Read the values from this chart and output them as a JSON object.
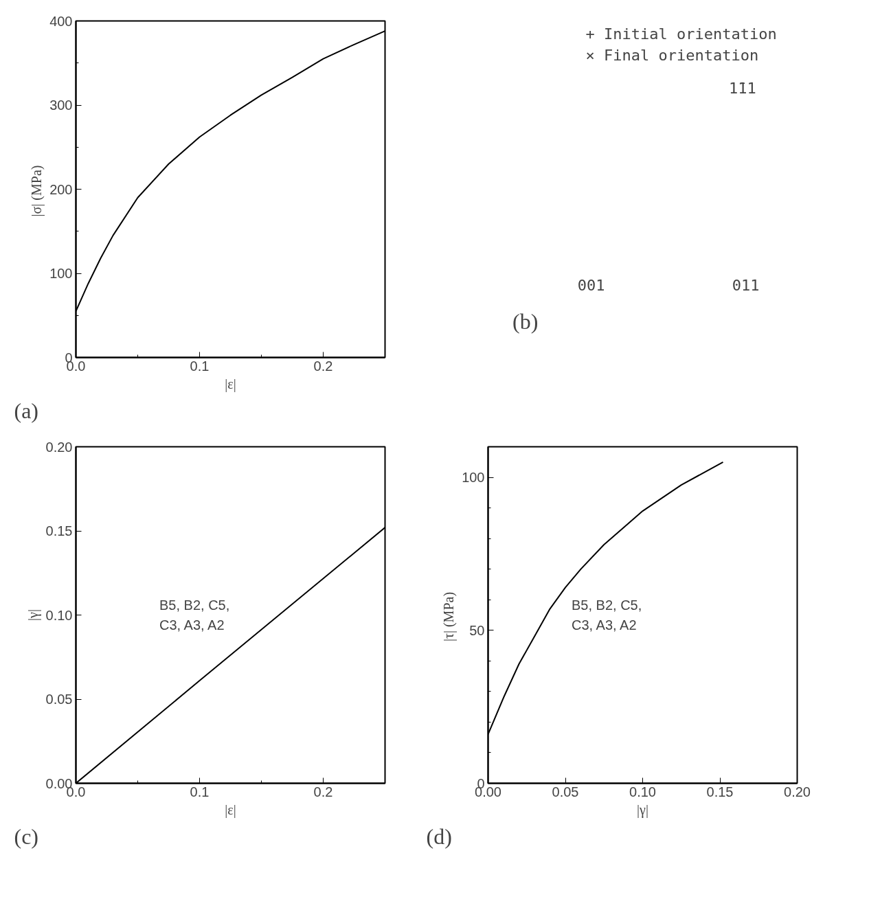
{
  "chart_data": [
    {
      "type": "line",
      "xlabel": "|ε|",
      "ylabel": "|σ|  (MPa)",
      "annotations": [
        "(a)"
      ],
      "x": [
        0,
        0.01,
        0.02,
        0.03,
        0.05,
        0.075,
        0.1,
        0.125,
        0.15,
        0.175,
        0.2,
        0.225,
        0.25
      ],
      "series": [
        {
          "color": "#000000",
          "values": [
            55,
            88,
            118,
            145,
            190,
            230,
            262,
            288,
            312,
            333,
            355,
            372,
            388
          ]
        }
      ],
      "xlim": [
        0,
        0.25
      ],
      "ylim": [
        0,
        400
      ],
      "xticks": [
        {
          "value": 0,
          "label": "0.0"
        },
        {
          "value": 0.05,
          "label": null
        },
        {
          "value": 0.1,
          "label": "0.1"
        },
        {
          "value": 0.15,
          "label": null
        },
        {
          "value": 0.2,
          "label": "0.2"
        }
      ],
      "yticks": [
        0,
        {
          "value": 50,
          "label": null
        },
        100,
        {
          "value": 150,
          "label": null
        },
        200,
        {
          "value": 250,
          "label": null
        },
        300,
        {
          "value": 350,
          "label": null
        },
        400
      ],
      "grid": false,
      "marker": "none",
      "line_style": "solid"
    },
    {
      "type": "other",
      "annotations": [
        "+ Initial orientation",
        "× Final orientation",
        "1̄11",
        "001",
        "011",
        "(b)"
      ]
    },
    {
      "type": "line",
      "xlabel": "|ε|",
      "ylabel": "|γ|",
      "annotations": [
        "(c)",
        "B5, B2, C5,\nC3, A3, A2"
      ],
      "x": [
        0,
        0.1,
        0.25
      ],
      "series": [
        {
          "color": "#000000",
          "values": [
            0,
            0.061,
            0.152
          ]
        }
      ],
      "xlim": [
        0,
        0.25
      ],
      "ylim": [
        0,
        0.2
      ],
      "xticks": [
        {
          "value": 0,
          "label": "0.0"
        },
        {
          "value": 0.05,
          "label": null
        },
        {
          "value": 0.1,
          "label": "0.1"
        },
        {
          "value": 0.15,
          "label": null
        },
        {
          "value": 0.2,
          "label": "0.2"
        }
      ],
      "yticks": [
        {
          "value": 0,
          "label": "0.00"
        },
        0.05,
        {
          "value": 0.1,
          "label": "0.10"
        },
        0.15,
        {
          "value": 0.2,
          "label": "0.20"
        }
      ],
      "grid": false,
      "marker": "none",
      "line_style": "solid"
    },
    {
      "type": "line",
      "xlabel": "|γ|",
      "ylabel": "|τ|  (MPa)",
      "annotations": [
        "(d)",
        "B5, B2, C5,\nC3, A3, A2"
      ],
      "x": [
        0,
        0.01,
        0.02,
        0.03,
        0.04,
        0.05,
        0.06,
        0.075,
        0.1,
        0.125,
        0.152
      ],
      "series": [
        {
          "color": "#000000",
          "values": [
            16,
            28,
            39,
            48,
            57,
            64,
            70,
            78,
            89,
            97.5,
            105
          ]
        }
      ],
      "xlim": [
        0,
        0.2
      ],
      "ylim": [
        0,
        110
      ],
      "xticks": [
        {
          "value": 0,
          "label": "0.00"
        },
        0.05,
        {
          "value": 0.1,
          "label": "0.10"
        },
        0.15,
        {
          "value": 0.2,
          "label": "0.20"
        }
      ],
      "yticks": [
        0,
        {
          "value": 10,
          "label": null
        },
        {
          "value": 20,
          "label": null
        },
        {
          "value": 30,
          "label": null
        },
        {
          "value": 40,
          "label": null
        },
        50,
        {
          "value": 60,
          "label": null
        },
        {
          "value": 70,
          "label": null
        },
        {
          "value": 80,
          "label": null
        },
        {
          "value": 90,
          "label": null
        },
        100
      ],
      "grid": false,
      "marker": "none",
      "line_style": "solid"
    }
  ]
}
